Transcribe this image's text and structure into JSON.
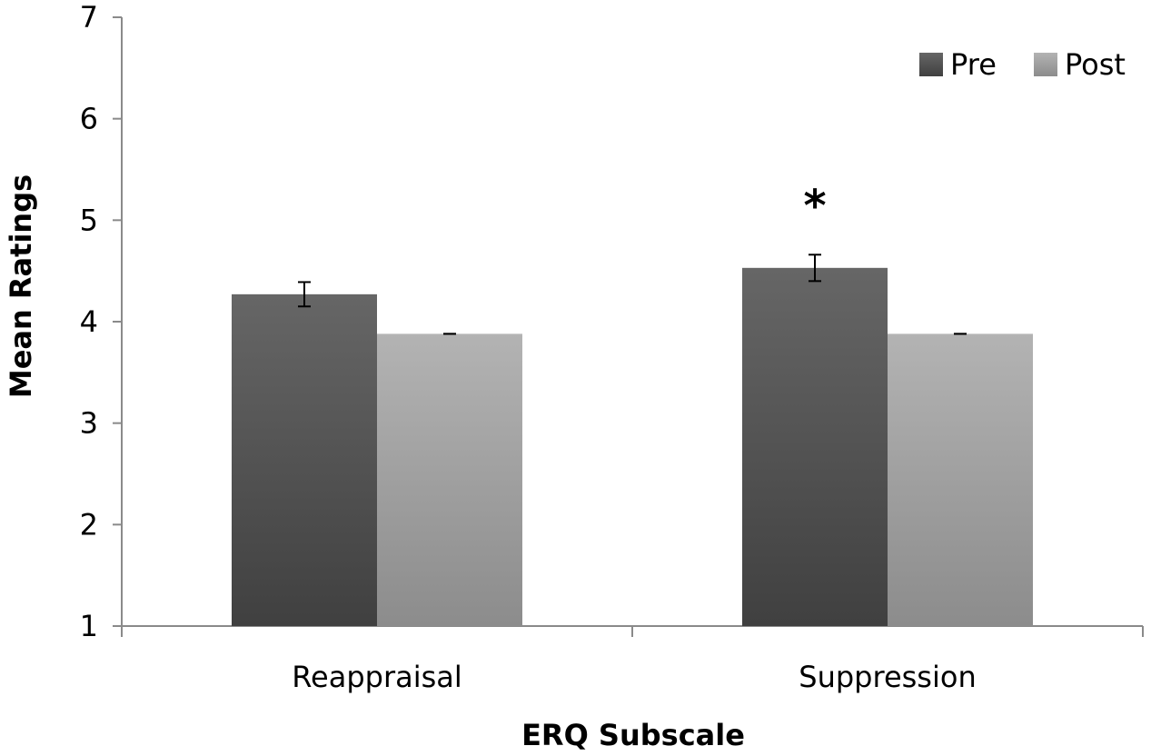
{
  "chart_data": {
    "type": "bar",
    "title": "",
    "xlabel": "ERQ Subscale",
    "ylabel": "Mean Ratings",
    "ylim": [
      1,
      7
    ],
    "yticks": [
      1,
      2,
      3,
      4,
      5,
      6,
      7
    ],
    "categories": [
      "Reappraisal",
      "Suppression"
    ],
    "series": [
      {
        "name": "Pre",
        "values": [
          4.27,
          4.53
        ],
        "errors": [
          0.12,
          0.13
        ],
        "color": "#555555"
      },
      {
        "name": "Post",
        "values": [
          3.88,
          3.88
        ],
        "errors": [
          0.0,
          0.0
        ],
        "color": "#a6a6a6"
      }
    ],
    "legend_position": "top-right",
    "grid": false,
    "annotations": [
      {
        "text": "*",
        "category": "Suppression",
        "y": 5.3
      }
    ]
  }
}
